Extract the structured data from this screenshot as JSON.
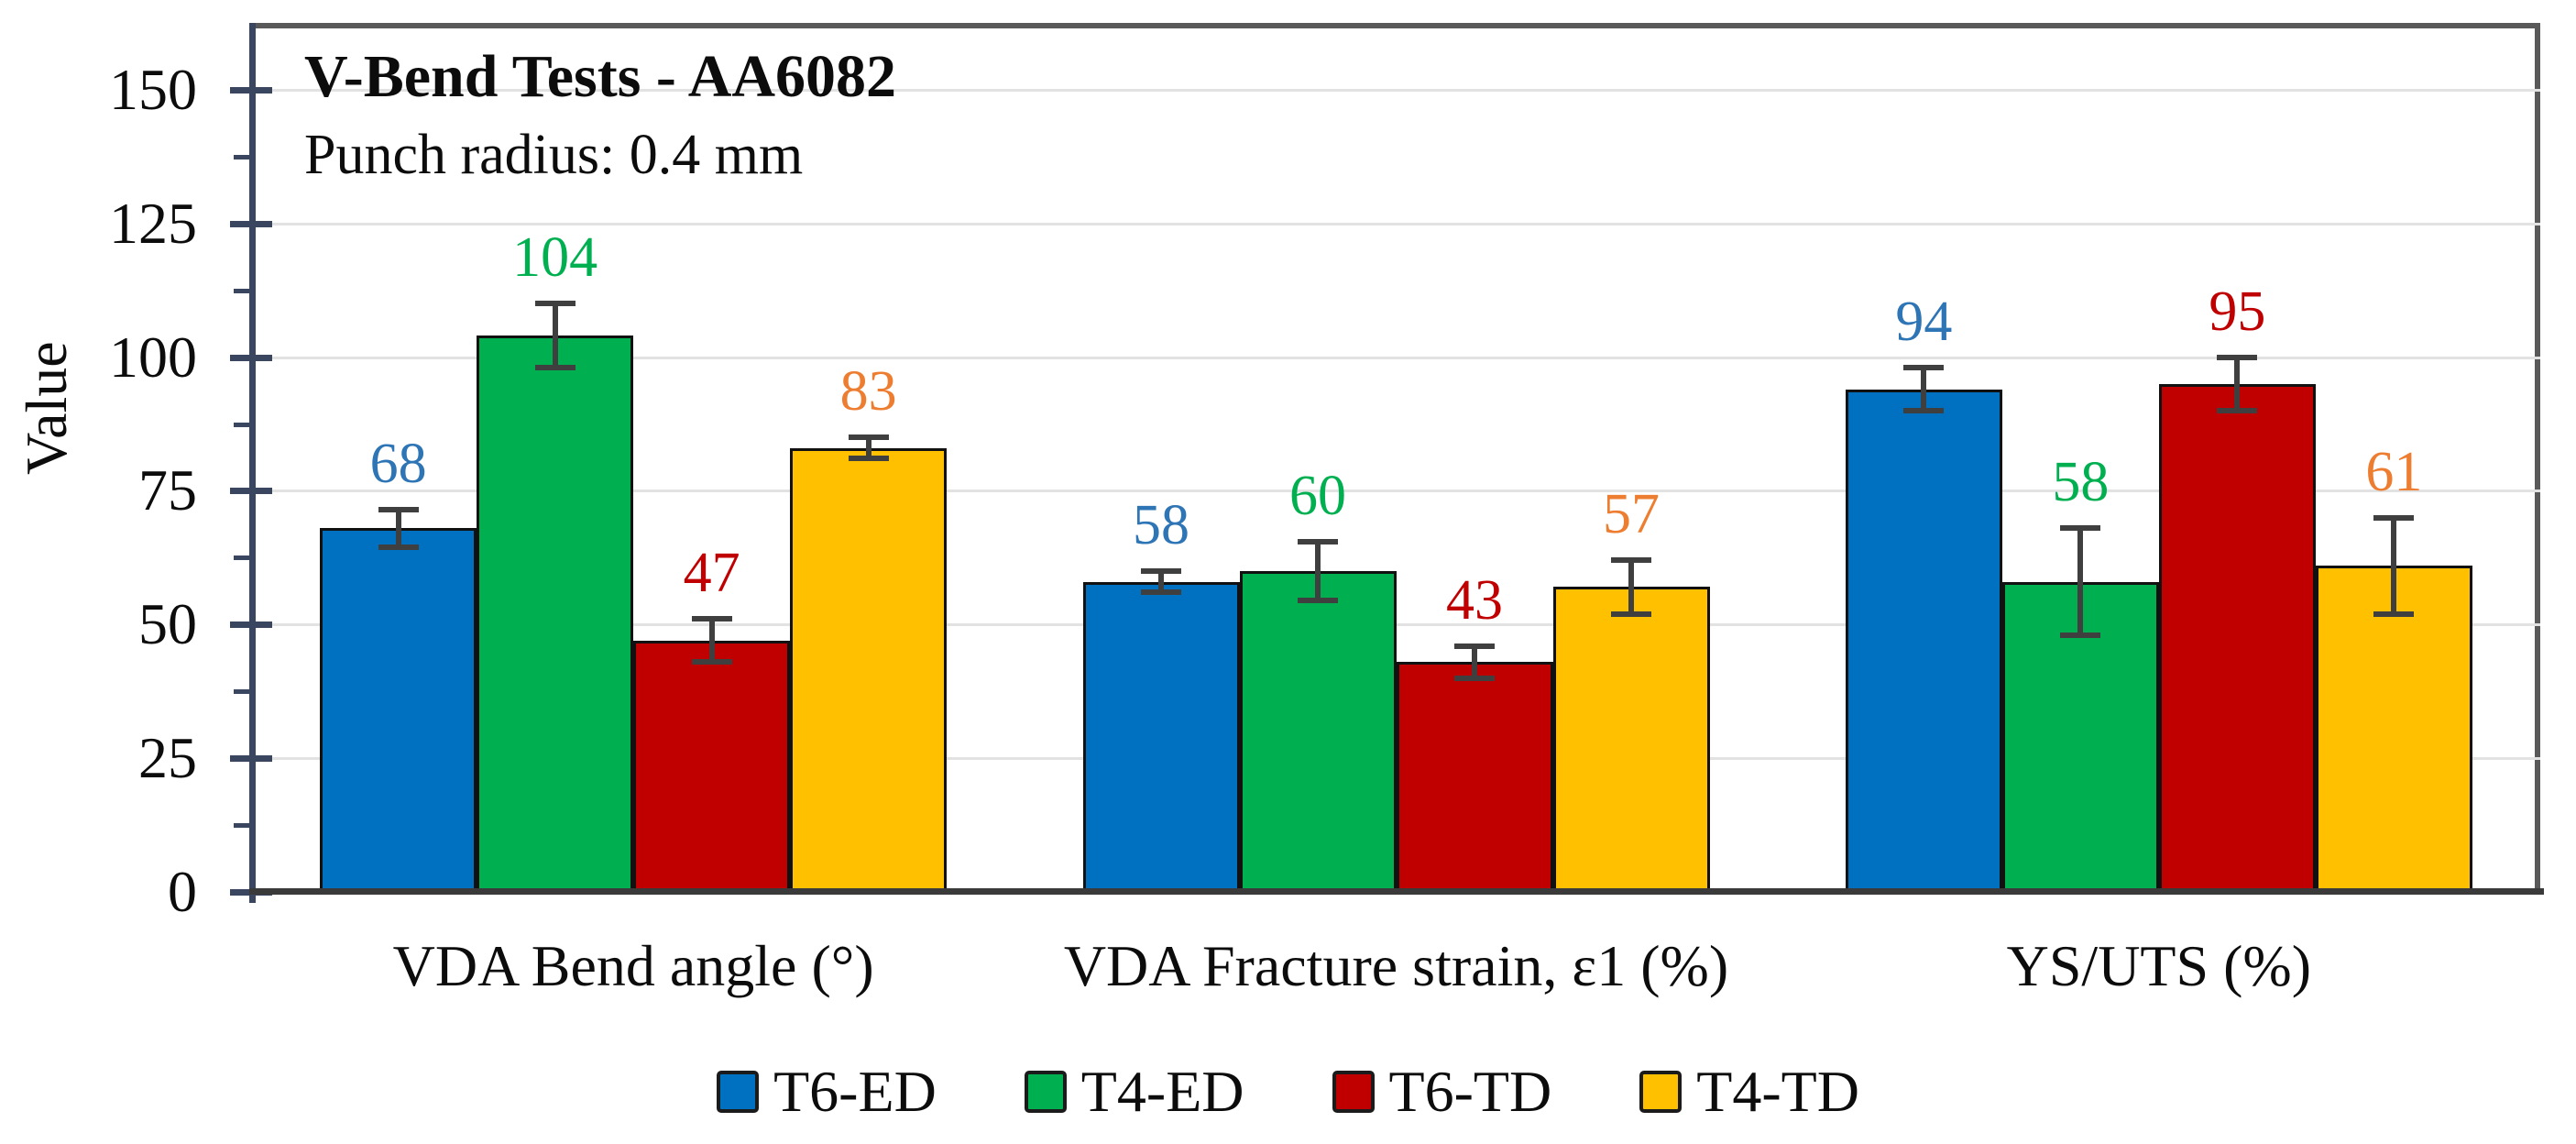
{
  "chart_data": {
    "type": "bar",
    "title": "V-Bend Tests - AA6082",
    "subtitle": "Punch radius: 0.4 mm",
    "ylabel": "Value",
    "xlabel": "",
    "ylim": [
      0,
      162.5
    ],
    "yticks": [
      0,
      25,
      50,
      75,
      100,
      125,
      150
    ],
    "minor_tick_unit": 12.5,
    "grid": "horizontal-major",
    "legend_position": "bottom",
    "categories": [
      "VDA Bend angle (°)",
      "VDA Fracture strain, ε1 (%)",
      "YS/UTS (%)"
    ],
    "series": [
      {
        "name": "T6-ED",
        "color": "#0070C0",
        "label_color": "#2E75B6",
        "values": [
          68,
          58,
          94
        ],
        "errors": [
          3.5,
          2,
          4
        ]
      },
      {
        "name": "T4-ED",
        "color": "#00B050",
        "label_color": "#00B050",
        "values": [
          104,
          60,
          58
        ],
        "errors": [
          6,
          5.5,
          10
        ]
      },
      {
        "name": "T6-TD",
        "color": "#C00000",
        "label_color": "#C00000",
        "values": [
          47,
          43,
          95
        ],
        "errors": [
          4,
          3,
          5
        ]
      },
      {
        "name": "T4-TD",
        "color": "#FFC000",
        "label_color": "#ED7D31",
        "values": [
          83,
          57,
          61
        ],
        "errors": [
          2,
          5,
          9
        ]
      }
    ],
    "data_labels_shown": true,
    "error_bars_shown": true,
    "style": {
      "axis_color": "#3A4660",
      "baseline_color": "#3A3A3A",
      "plot_border_color": "#595959",
      "grid_color": "#E2E2E2",
      "error_bar_color": "#3F3F3F",
      "bar_outline_color": "#111111",
      "text_color": "#0C0C0C"
    }
  }
}
